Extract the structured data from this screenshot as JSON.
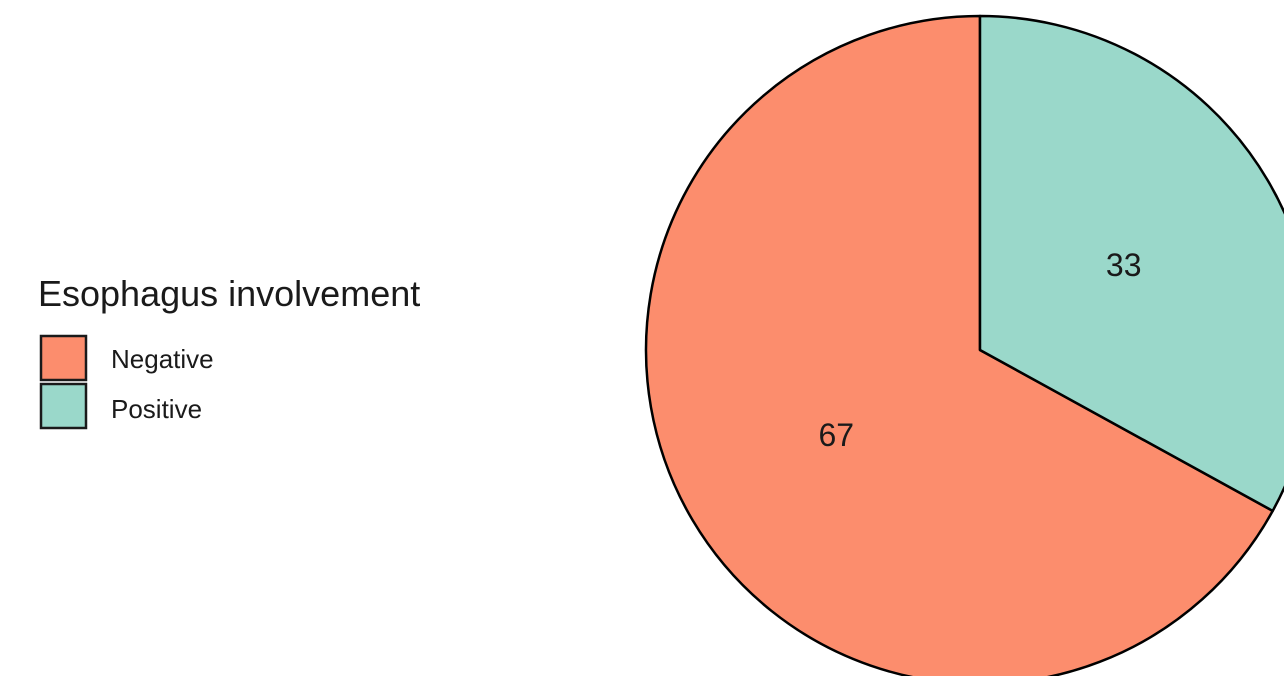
{
  "chart_data": {
    "type": "pie",
    "legend": {
      "title": "Esophagus involvement",
      "position": "left"
    },
    "categories": [
      "Negative",
      "Positive"
    ],
    "values": [
      67,
      33
    ],
    "data_labels": [
      "67",
      "33"
    ],
    "colors": [
      "#FC8D6D",
      "#9AD8CA"
    ],
    "edge_color": "#000000",
    "start": "12 o'clock",
    "direction": "clockwise",
    "first_drawn": "Positive"
  }
}
